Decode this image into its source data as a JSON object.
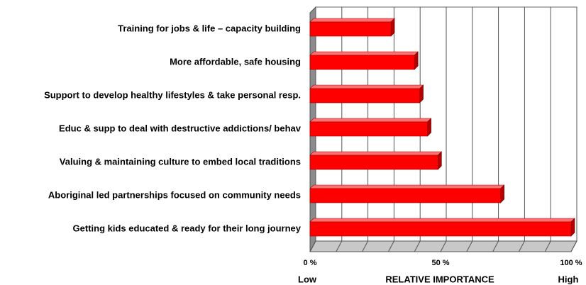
{
  "chart_data": {
    "type": "bar3d_horizontal",
    "categories": [
      "Training for jobs & life – capacity building",
      "More affordable, safe housing",
      "Support to develop healthy lifestyles & take personal resp.",
      "Educ & supp to deal with destructive addictions/ behav",
      "Valuing & maintaining culture to embed local traditions",
      "Aboriginal led partnerships focused on community needs",
      "Getting kids educated & ready for their long journey"
    ],
    "values": [
      31,
      40,
      42,
      45,
      49,
      73,
      100
    ],
    "color": "#ff0000",
    "xlim": [
      0,
      100
    ],
    "xticks": [
      {
        "value": 0,
        "label": "0 %"
      },
      {
        "value": 10,
        "label": null
      },
      {
        "value": 20,
        "label": null
      },
      {
        "value": 30,
        "label": null
      },
      {
        "value": 40,
        "label": null
      },
      {
        "value": 50,
        "label": "50 %"
      },
      {
        "value": 60,
        "label": null
      },
      {
        "value": 70,
        "label": null
      },
      {
        "value": 80,
        "label": null
      },
      {
        "value": 90,
        "label": null
      },
      {
        "value": 100,
        "label": "100 %"
      }
    ],
    "grid": true,
    "xlabel": "RELATIVE IMPORTANCE",
    "annotations": [
      "Low",
      "High"
    ]
  }
}
